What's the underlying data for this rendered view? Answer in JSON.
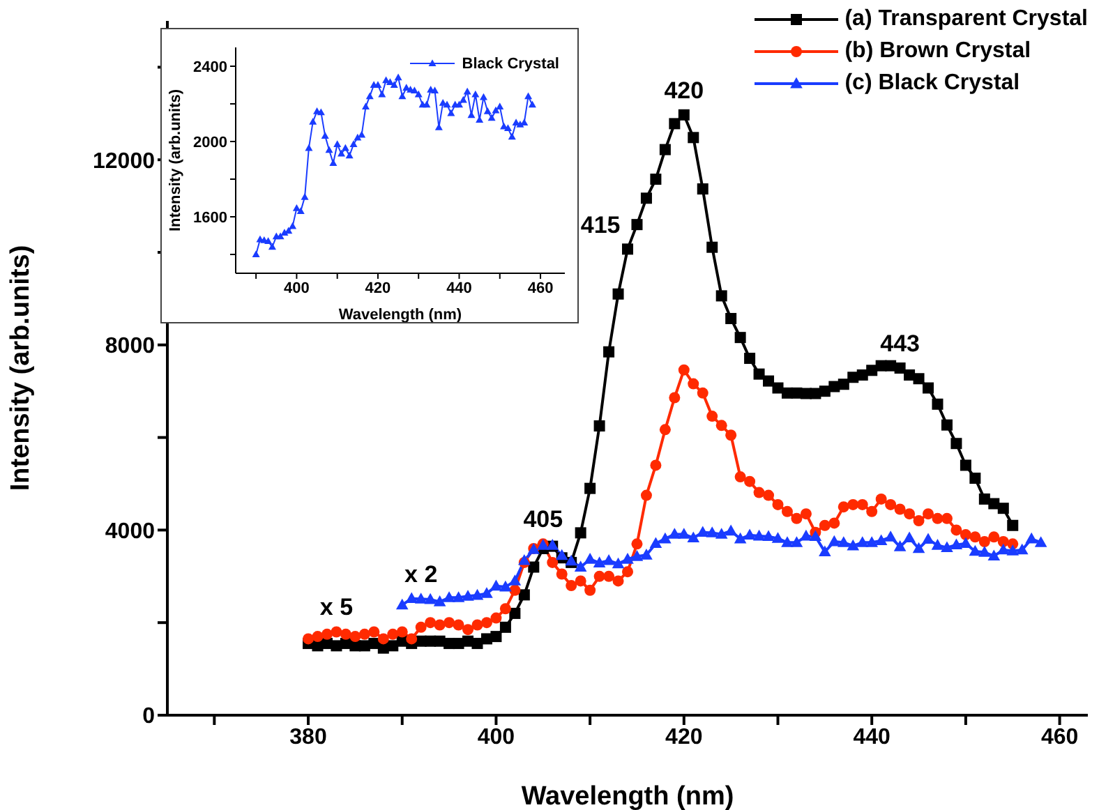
{
  "chart_data": [
    {
      "type": "line",
      "xlabel": "Wavelength (nm)",
      "ylabel": "Intensity (arb.units)",
      "xlim": [
        365,
        463
      ],
      "xticks": [
        {
          "value": 370,
          "label": null
        },
        380,
        {
          "value": 390,
          "label": null
        },
        400,
        {
          "value": 410,
          "label": null
        },
        420,
        {
          "value": 430,
          "label": null
        },
        440,
        {
          "value": 450,
          "label": null
        },
        460
      ],
      "ylim": [
        0,
        15000
      ],
      "yticks": [
        0,
        {
          "value": 2000,
          "label": null
        },
        4000,
        {
          "value": 6000,
          "label": null
        },
        8000,
        {
          "value": 10000,
          "label": null
        },
        12000,
        {
          "value": 14000,
          "label": null
        }
      ],
      "legend": "top right",
      "line_style": "solid",
      "series": [
        {
          "name": "(a) Transparent Crystal",
          "color": "#000000",
          "marker": "square",
          "x": [
            380,
            381,
            382,
            383,
            384,
            385,
            386,
            387,
            388,
            389,
            390,
            391,
            392,
            393,
            394,
            395,
            396,
            397,
            398,
            399,
            400,
            401,
            402,
            403,
            404,
            405,
            406,
            407,
            408,
            409,
            410,
            411,
            412,
            413,
            414,
            415,
            416,
            417,
            418,
            419,
            420,
            421,
            422,
            423,
            424,
            425,
            426,
            427,
            428,
            429,
            430,
            431,
            432,
            433,
            434,
            435,
            436,
            437,
            438,
            439,
            440,
            441,
            442,
            443,
            444,
            445,
            446,
            447,
            448,
            449,
            450,
            451,
            452,
            453,
            454,
            455
          ],
          "values": [
            1550,
            1500,
            1550,
            1500,
            1550,
            1500,
            1500,
            1550,
            1450,
            1500,
            1600,
            1550,
            1600,
            1600,
            1600,
            1550,
            1550,
            1600,
            1550,
            1650,
            1700,
            1900,
            2200,
            2600,
            3200,
            3600,
            3650,
            3400,
            3300,
            3940,
            4900,
            6250,
            7850,
            9100,
            10070,
            10600,
            11170,
            11580,
            12220,
            12780,
            12970,
            12480,
            11370,
            10110,
            9060,
            8570,
            8160,
            7710,
            7370,
            7220,
            7070,
            6960,
            6960,
            6950,
            6950,
            7000,
            7100,
            7150,
            7300,
            7350,
            7450,
            7550,
            7550,
            7500,
            7350,
            7270,
            7070,
            6720,
            6270,
            5870,
            5400,
            5120,
            4670,
            4570,
            4470,
            4100
          ]
        },
        {
          "name": "(b) Brown Crystal",
          "color": "#ff2a00",
          "marker": "circle",
          "x": [
            380,
            381,
            382,
            383,
            384,
            385,
            386,
            387,
            388,
            389,
            390,
            391,
            392,
            393,
            394,
            395,
            396,
            397,
            398,
            399,
            400,
            401,
            402,
            403,
            404,
            405,
            406,
            407,
            408,
            409,
            410,
            411,
            412,
            413,
            414,
            415,
            416,
            417,
            418,
            419,
            420,
            421,
            422,
            423,
            424,
            425,
            426,
            427,
            428,
            429,
            430,
            431,
            432,
            433,
            434,
            435,
            436,
            437,
            438,
            439,
            440,
            441,
            442,
            443,
            444,
            445,
            446,
            447,
            448,
            449,
            450,
            451,
            452,
            453,
            454,
            455
          ],
          "values": [
            1650,
            1700,
            1750,
            1800,
            1750,
            1700,
            1750,
            1800,
            1650,
            1750,
            1800,
            1650,
            1900,
            2000,
            1950,
            2000,
            1950,
            1850,
            1950,
            2000,
            2100,
            2300,
            2700,
            3300,
            3600,
            3700,
            3300,
            3050,
            2800,
            2900,
            2700,
            3000,
            3000,
            2900,
            3100,
            3700,
            4750,
            5400,
            6170,
            6860,
            7460,
            7160,
            6960,
            6460,
            6260,
            6050,
            5150,
            5050,
            4810,
            4750,
            4550,
            4400,
            4250,
            4350,
            3950,
            4100,
            4150,
            4500,
            4550,
            4550,
            4400,
            4670,
            4550,
            4450,
            4350,
            4200,
            4350,
            4250,
            4250,
            4000,
            3900,
            3850,
            3750,
            3850,
            3750,
            3700
          ]
        },
        {
          "name": "(c) Black Crystal",
          "color": "#1a3cff",
          "marker": "triangle",
          "x": [
            390,
            391,
            392,
            393,
            394,
            395,
            396,
            397,
            398,
            399,
            400,
            401,
            402,
            403,
            404,
            405,
            406,
            407,
            408,
            409,
            410,
            411,
            412,
            413,
            414,
            415,
            416,
            417,
            418,
            419,
            420,
            421,
            422,
            423,
            424,
            425,
            426,
            427,
            428,
            429,
            430,
            431,
            432,
            433,
            434,
            435,
            436,
            437,
            438,
            439,
            440,
            441,
            442,
            443,
            444,
            445,
            446,
            447,
            448,
            449,
            450,
            451,
            452,
            453,
            454,
            455,
            456,
            457,
            458
          ],
          "values": [
            2380,
            2520,
            2510,
            2500,
            2450,
            2540,
            2540,
            2570,
            2590,
            2630,
            2790,
            2770,
            2900,
            3340,
            3580,
            3670,
            3670,
            3450,
            3330,
            3200,
            3370,
            3290,
            3340,
            3270,
            3370,
            3430,
            3460,
            3710,
            3810,
            3910,
            3910,
            3830,
            3950,
            3940,
            3910,
            3980,
            3810,
            3890,
            3870,
            3860,
            3820,
            3730,
            3730,
            3870,
            3860,
            3530,
            3750,
            3730,
            3660,
            3730,
            3730,
            3770,
            3850,
            3640,
            3830,
            3600,
            3800,
            3670,
            3620,
            3680,
            3710,
            3540,
            3520,
            3440,
            3570,
            3550,
            3570,
            3810,
            3730
          ]
        }
      ],
      "annotations": [
        {
          "text": "405",
          "x": 405,
          "y": 3700
        },
        {
          "text": "415",
          "x": 415,
          "y": 10600
        },
        {
          "text": "420",
          "x": 420,
          "y": 12970
        },
        {
          "text": "443",
          "x": 443,
          "y": 7500
        },
        {
          "text": "x 5",
          "x": 383,
          "y": 1800
        },
        {
          "text": "x 2",
          "x": 392,
          "y": 2510
        }
      ]
    },
    {
      "type": "line",
      "xlabel": "Wavelength (nm)",
      "ylabel": "Intensity (arb.units)",
      "xlim": [
        385,
        466
      ],
      "xticks": [
        {
          "value": 390,
          "label": null
        },
        400,
        {
          "value": 410,
          "label": null
        },
        420,
        {
          "value": 430,
          "label": null
        },
        440,
        {
          "value": 450,
          "label": null
        },
        460
      ],
      "ylim": [
        1300,
        2500
      ],
      "yticks": [
        {
          "value": 1400,
          "label": null
        },
        1600,
        {
          "value": 1800,
          "label": null
        },
        2000,
        {
          "value": 2200,
          "label": null
        },
        2400
      ],
      "legend": "top right",
      "line_style": "solid",
      "series": [
        {
          "name": "Black Crystal",
          "color": "#1a3cff",
          "marker": "triangle",
          "x": [
            390,
            391,
            392,
            393,
            394,
            395,
            396,
            397,
            398,
            399,
            400,
            401,
            402,
            403,
            404,
            405,
            406,
            407,
            408,
            409,
            410,
            411,
            412,
            413,
            414,
            415,
            416,
            417,
            418,
            419,
            420,
            421,
            422,
            423,
            424,
            425,
            426,
            427,
            428,
            429,
            430,
            431,
            432,
            433,
            434,
            435,
            436,
            437,
            438,
            439,
            440,
            441,
            442,
            443,
            444,
            445,
            446,
            447,
            448,
            449,
            450,
            451,
            452,
            453,
            454,
            455,
            456,
            457,
            458
          ],
          "values": [
            1400,
            1480,
            1475,
            1470,
            1440,
            1495,
            1495,
            1515,
            1525,
            1550,
            1645,
            1630,
            1705,
            1965,
            2105,
            2160,
            2155,
            2030,
            1955,
            1885,
            1985,
            1935,
            1965,
            1925,
            1985,
            2020,
            2035,
            2185,
            2240,
            2300,
            2300,
            2250,
            2325,
            2315,
            2300,
            2340,
            2240,
            2285,
            2275,
            2270,
            2250,
            2195,
            2195,
            2275,
            2270,
            2075,
            2205,
            2195,
            2150,
            2195,
            2195,
            2220,
            2265,
            2140,
            2250,
            2115,
            2235,
            2160,
            2125,
            2165,
            2185,
            2080,
            2070,
            2025,
            2100,
            2090,
            2100,
            2240,
            2195
          ]
        }
      ]
    }
  ]
}
